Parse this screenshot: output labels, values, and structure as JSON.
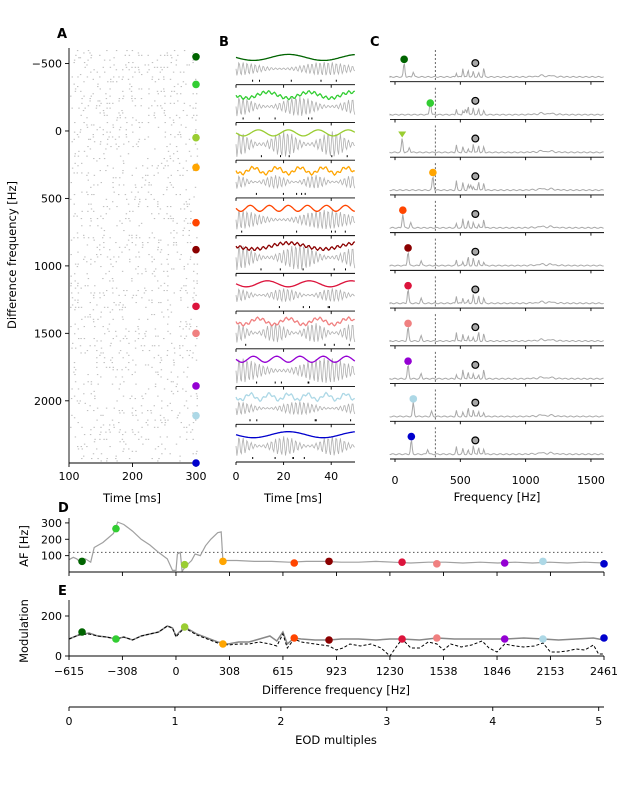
{
  "colors": [
    "#006400",
    "#32cd32",
    "#9acd32",
    "#ffa500",
    "#ff4500",
    "#8b0000",
    "#dc143c",
    "#f08080",
    "#9400d3",
    "#add8e6",
    "#0000cd"
  ],
  "chart_data": [
    {
      "panel": "A",
      "type": "scatter",
      "xlabel": "Time [ms]",
      "ylabel": "Difference frequency [Hz]",
      "xlim": [
        100,
        300
      ],
      "ylim": [
        -615,
        2461
      ],
      "y_inverted": true,
      "xticks": [
        "100",
        "200",
        "300"
      ],
      "yticks": [
        "-500",
        "0",
        "500",
        "1000",
        "1500",
        "2000"
      ],
      "ytick_values": [
        -500,
        0,
        500,
        1000,
        1500,
        2000
      ],
      "marker_df": [
        -550,
        -345,
        50,
        270,
        680,
        880,
        1300,
        1500,
        1890,
        2110,
        2461
      ],
      "description_values": "spike raster, grey dots"
    },
    {
      "panel": "B",
      "type": "line",
      "xlabel": "Time [ms]",
      "xlim": [
        0,
        50
      ],
      "xticks": [
        "0",
        "20",
        "40"
      ],
      "rows": 11
    },
    {
      "panel": "C",
      "type": "line",
      "xlabel": "Frequency [Hz]",
      "xlim": [
        0,
        1600
      ],
      "xticks": [
        "0",
        "500",
        "1000",
        "1500"
      ],
      "eod_frequency": 615,
      "dashed_line_at": 308,
      "colored_peak_freq": [
        70,
        270,
        55,
        290,
        60,
        100,
        100,
        100,
        100,
        140,
        125
      ]
    },
    {
      "panel": "D",
      "type": "line",
      "ylabel": "AF [Hz]",
      "xlim": [
        -615,
        2461
      ],
      "ylim": [
        0,
        330
      ],
      "yticks": [
        "100",
        "200",
        "300"
      ],
      "ytick_values": [
        100,
        200,
        300
      ],
      "dotted_line_y": 120,
      "points": [
        {
          "x": -540,
          "y": 65
        },
        {
          "x": -345,
          "y": 265
        },
        {
          "x": 50,
          "y": 45
        },
        {
          "x": 270,
          "y": 65
        },
        {
          "x": 680,
          "y": 55
        },
        {
          "x": 880,
          "y": 65
        },
        {
          "x": 1300,
          "y": 60
        },
        {
          "x": 1500,
          "y": 50
        },
        {
          "x": 1890,
          "y": 55
        },
        {
          "x": 2110,
          "y": 65
        },
        {
          "x": 2461,
          "y": 50
        }
      ],
      "curve": [
        [
          -615,
          75
        ],
        [
          -590,
          90
        ],
        [
          -570,
          80
        ],
        [
          -550,
          60
        ],
        [
          -520,
          80
        ],
        [
          -490,
          60
        ],
        [
          -470,
          150
        ],
        [
          -420,
          180
        ],
        [
          -360,
          235
        ],
        [
          -335,
          305
        ],
        [
          -300,
          290
        ],
        [
          -250,
          250
        ],
        [
          -200,
          200
        ],
        [
          -150,
          165
        ],
        [
          -100,
          120
        ],
        [
          -50,
          80
        ],
        [
          -20,
          10
        ],
        [
          0,
          10
        ],
        [
          8,
          110
        ],
        [
          25,
          120
        ],
        [
          35,
          5
        ],
        [
          60,
          40
        ],
        [
          90,
          70
        ],
        [
          110,
          110
        ],
        [
          140,
          100
        ],
        [
          170,
          160
        ],
        [
          200,
          200
        ],
        [
          240,
          240
        ],
        [
          260,
          245
        ],
        [
          270,
          70
        ],
        [
          350,
          70
        ],
        [
          450,
          65
        ],
        [
          550,
          65
        ],
        [
          650,
          60
        ],
        [
          750,
          65
        ],
        [
          850,
          65
        ],
        [
          950,
          60
        ],
        [
          1050,
          60
        ],
        [
          1150,
          65
        ],
        [
          1250,
          60
        ],
        [
          1350,
          55
        ],
        [
          1450,
          60
        ],
        [
          1550,
          60
        ],
        [
          1650,
          55
        ],
        [
          1750,
          60
        ],
        [
          1850,
          55
        ],
        [
          1950,
          60
        ],
        [
          2050,
          55
        ],
        [
          2150,
          60
        ],
        [
          2250,
          55
        ],
        [
          2350,
          60
        ],
        [
          2461,
          55
        ]
      ]
    },
    {
      "panel": "E",
      "type": "line",
      "ylabel": "Modulation",
      "xlabel": "Difference frequency [Hz]",
      "xlim": [
        -615,
        2461
      ],
      "ylim": [
        0,
        280
      ],
      "yticks": [
        "0",
        "200"
      ],
      "ytick_values": [
        0,
        200
      ],
      "xticks": [
        "−615",
        "−308",
        "0",
        "308",
        "615",
        "923",
        "1230",
        "1538",
        "1846",
        "2153",
        "2461"
      ],
      "xtick_values": [
        -615,
        -308,
        0,
        308,
        615,
        923,
        1230,
        1538,
        1846,
        2153,
        2461
      ],
      "points": [
        {
          "x": -540,
          "y": 120
        },
        {
          "x": -345,
          "y": 85
        },
        {
          "x": 50,
          "y": 145
        },
        {
          "x": 270,
          "y": 60
        },
        {
          "x": 680,
          "y": 90
        },
        {
          "x": 880,
          "y": 80
        },
        {
          "x": 1300,
          "y": 85
        },
        {
          "x": 1500,
          "y": 90
        },
        {
          "x": 1890,
          "y": 85
        },
        {
          "x": 2110,
          "y": 85
        },
        {
          "x": 2461,
          "y": 90
        }
      ],
      "series": [
        {
          "style": "solid",
          "values": [
            [
              -615,
              85
            ],
            [
              -560,
              105
            ],
            [
              -500,
              115
            ],
            [
              -450,
              100
            ],
            [
              -400,
              95
            ],
            [
              -345,
              85
            ],
            [
              -300,
              95
            ],
            [
              -250,
              80
            ],
            [
              -200,
              100
            ],
            [
              -150,
              110
            ],
            [
              -100,
              120
            ],
            [
              -50,
              150
            ],
            [
              -20,
              140
            ],
            [
              0,
              100
            ],
            [
              20,
              120
            ],
            [
              50,
              145
            ],
            [
              80,
              130
            ],
            [
              120,
              110
            ],
            [
              180,
              90
            ],
            [
              240,
              70
            ],
            [
              300,
              60
            ],
            [
              360,
              70
            ],
            [
              420,
              70
            ],
            [
              480,
              85
            ],
            [
              540,
              100
            ],
            [
              580,
              75
            ],
            [
              615,
              120
            ],
            [
              640,
              60
            ],
            [
              680,
              90
            ],
            [
              720,
              85
            ],
            [
              800,
              80
            ],
            [
              880,
              80
            ],
            [
              950,
              85
            ],
            [
              1050,
              85
            ],
            [
              1150,
              80
            ],
            [
              1230,
              85
            ],
            [
              1300,
              85
            ],
            [
              1400,
              80
            ],
            [
              1500,
              90
            ],
            [
              1600,
              85
            ],
            [
              1700,
              85
            ],
            [
              1800,
              85
            ],
            [
              1890,
              85
            ],
            [
              2000,
              90
            ],
            [
              2110,
              85
            ],
            [
              2200,
              80
            ],
            [
              2300,
              85
            ],
            [
              2400,
              90
            ],
            [
              2461,
              80
            ]
          ]
        },
        {
          "style": "dashed",
          "values": [
            [
              -615,
              85
            ],
            [
              -560,
              105
            ],
            [
              -500,
              110
            ],
            [
              -450,
              100
            ],
            [
              -400,
              95
            ],
            [
              -345,
              85
            ],
            [
              -300,
              95
            ],
            [
              -250,
              80
            ],
            [
              -200,
              100
            ],
            [
              -150,
              110
            ],
            [
              -100,
              120
            ],
            [
              -50,
              150
            ],
            [
              -20,
              140
            ],
            [
              0,
              95
            ],
            [
              20,
              115
            ],
            [
              50,
              140
            ],
            [
              80,
              125
            ],
            [
              120,
              105
            ],
            [
              180,
              85
            ],
            [
              240,
              65
            ],
            [
              300,
              55
            ],
            [
              360,
              60
            ],
            [
              420,
              60
            ],
            [
              480,
              70
            ],
            [
              540,
              60
            ],
            [
              580,
              50
            ],
            [
              615,
              110
            ],
            [
              640,
              40
            ],
            [
              680,
              85
            ],
            [
              720,
              70
            ],
            [
              800,
              60
            ],
            [
              880,
              50
            ],
            [
              923,
              30
            ],
            [
              960,
              40
            ],
            [
              1000,
              60
            ],
            [
              1060,
              50
            ],
            [
              1120,
              60
            ],
            [
              1180,
              40
            ],
            [
              1230,
              0
            ],
            [
              1270,
              50
            ],
            [
              1300,
              85
            ],
            [
              1350,
              40
            ],
            [
              1400,
              40
            ],
            [
              1450,
              70
            ],
            [
              1500,
              60
            ],
            [
              1538,
              30
            ],
            [
              1580,
              60
            ],
            [
              1640,
              45
            ],
            [
              1700,
              55
            ],
            [
              1760,
              75
            ],
            [
              1800,
              40
            ],
            [
              1846,
              20
            ],
            [
              1890,
              60
            ],
            [
              1950,
              50
            ],
            [
              2000,
              45
            ],
            [
              2060,
              50
            ],
            [
              2110,
              65
            ],
            [
              2153,
              20
            ],
            [
              2200,
              20
            ],
            [
              2250,
              25
            ],
            [
              2300,
              35
            ],
            [
              2350,
              30
            ],
            [
              2400,
              55
            ],
            [
              2430,
              10
            ],
            [
              2461,
              10
            ]
          ]
        }
      ]
    },
    {
      "panel": "E-bottom-axis",
      "type": "line",
      "xlabel": "EOD multiples",
      "xlim": [
        0,
        5.05
      ],
      "xticks": [
        "0",
        "1",
        "2",
        "3",
        "4",
        "5"
      ]
    }
  ],
  "panel_labels": [
    "A",
    "B",
    "C",
    "D",
    "E"
  ]
}
